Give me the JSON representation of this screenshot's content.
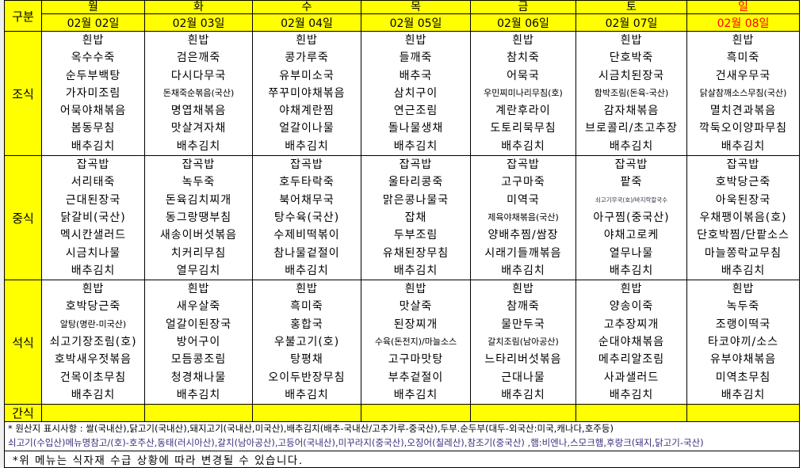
{
  "header": {
    "label": "구분",
    "days": [
      "월",
      "화",
      "수",
      "목",
      "금",
      "토",
      "일"
    ],
    "dates": [
      "02월  02일",
      "02월  03일",
      "02월  04일",
      "02월  05일",
      "02월  06일",
      "02월  07일",
      "02월  08일"
    ]
  },
  "colors": {
    "header_bg": "#ffff00",
    "holiday": "#ff0000",
    "note2": "#3a2f7a"
  },
  "meals": [
    {
      "label": "조식",
      "days": [
        [
          "흰밥",
          "옥수수죽",
          "순두부백탕",
          "가자미조림",
          "어묵야채볶음",
          "봄동무침",
          "배추김치"
        ],
        [
          "흰밥",
          "검은깨죽",
          "다시다무국",
          "돈채죽순볶음(국산)",
          "명엽채볶음",
          "맛살겨자채",
          "배추김치"
        ],
        [
          "흰밥",
          "콩가루죽",
          "유부미소국",
          "쭈꾸미야채볶음",
          "야채계란찜",
          "얼갈이나물",
          "배추김치"
        ],
        [
          "흰밥",
          "들깨죽",
          "배추국",
          "삼치구이",
          "연근조림",
          "돌나물생채",
          "배추김치"
        ],
        [
          "흰밥",
          "참치죽",
          "어묵국",
          "우민찌미나리무침(호)",
          "계란후라이",
          "도토리묵무침",
          "배추김치"
        ],
        [
          "흰밥",
          "단호박죽",
          "시금치된장국",
          "함박조림(돈육-국산)",
          "감자채볶음",
          "브로콜리/초고추장",
          "배추김치"
        ],
        [
          "흰밥",
          "흑미죽",
          "건새우무국",
          "닭살참깨소스무침(국산)",
          "멸치견과볶음",
          "깍둑오이양파무침",
          "배추김치"
        ]
      ]
    },
    {
      "label": "중식",
      "days": [
        [
          "잡곡밥",
          "서리태죽",
          "근대된장국",
          "닭갈비(국산)",
          "멕시칸샐러드",
          "시금치나물",
          "배추김치"
        ],
        [
          "잡곡밥",
          "녹두죽",
          "돈육김치찌개",
          "동그랑땡부침",
          "새송이버섯볶음",
          "치커리무침",
          "열무김치"
        ],
        [
          "잡곡밥",
          "호두타락죽",
          "북어채무국",
          "탕수육(국산)",
          "수제비떡볶이",
          "참나물겉절이",
          "배추김치"
        ],
        [
          "잡곡밥",
          "울타리콩죽",
          "맑은콩나물국",
          "잡채",
          "두부조림",
          "유채된장무침",
          "배추김치"
        ],
        [
          "잡곡밥",
          "고구마죽",
          "미역국",
          "제육야채볶음(국산)",
          "양배추찜/쌈장",
          "시래기들깨볶음",
          "배추김치"
        ],
        [
          "잡곡밥",
          "팥죽",
          "쇠고기무국(호)/바지락칼국수",
          "아구찜(중국산)",
          "야채고로케",
          "열무나물",
          "배추김치"
        ],
        [
          "잡곡밥",
          "호박당근죽",
          "아욱된장국",
          "우채팽이볶음(호)",
          "단호박찜/단팥소스",
          "마늘쫑락교무침",
          "배추김치"
        ]
      ]
    },
    {
      "label": "석식",
      "days": [
        [
          "흰밥",
          "호박당근죽",
          "알탕(명란-미국산)",
          "쇠고기장조림(호)",
          "호박새우젓볶음",
          "건목이초무침",
          "배추김치"
        ],
        [
          "흰밥",
          "새우살죽",
          "얼갈이된장국",
          "방어구이",
          "모듬콩조림",
          "청경채나물",
          "배추김치"
        ],
        [
          "흰밥",
          "흑미죽",
          "홍합국",
          "우불고기(호)",
          "탕평채",
          "오이두반장무침",
          "배추김치"
        ],
        [
          "흰밥",
          "맛살죽",
          "된장찌개",
          "수육(돈전지)/마늘소스",
          "고구마맛탕",
          "부추겉절이",
          "배추김치"
        ],
        [
          "흰밥",
          "참깨죽",
          "물만두국",
          "갈치조림(남아공산)",
          "느타리버섯볶음",
          "근대나물",
          "배추김치"
        ],
        [
          "흰밥",
          "양송이죽",
          "고추장찌개",
          "순대야채볶음",
          "메추리알조림",
          "사과샐러드",
          "배추김치"
        ],
        [
          "흰밥",
          "녹두죽",
          "조랭이떡국",
          "타코야끼/소스",
          "유부야채볶음",
          "미역초무침",
          "배추김치"
        ]
      ]
    }
  ],
  "snack": {
    "label": "간식"
  },
  "notes": [
    "* 원산지 표시사항 : 쌀(국내산),닭고기(국내산),돼지고기(국내산,미국산),배추김치(배추-국내산/고추가루-중국산),두부.순두부(대두-외국산:미국,캐나다,호주등)",
    "쇠고기(수입산)메뉴명참고/(호)-호주산,동태(러시아산),갈치(남아공산),고등어(국내산),미꾸라지(중국산),오징어(칠레산),참조기(중국산) ,햄:비엔나,스모크햄,후랑크(돼지,닭고기-국산)",
    "*위 메뉴는 식자재 수급 상황에 따라 변경될 수 있습니다."
  ]
}
